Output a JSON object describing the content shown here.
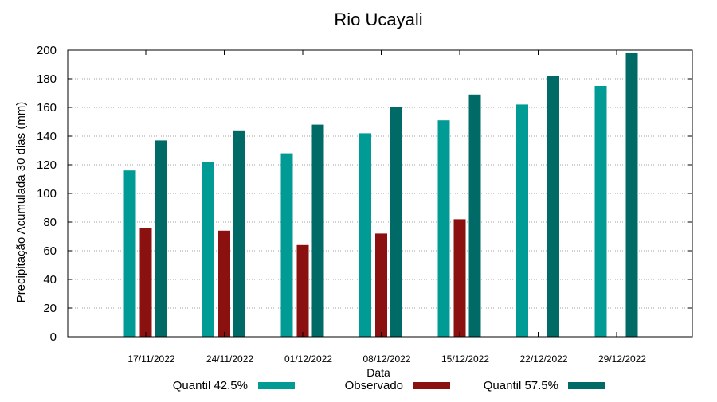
{
  "chart_data": {
    "type": "bar",
    "title": "Rio Ucayali",
    "xlabel": "Data",
    "ylabel": "Precipitação Acumulada 30 dias (mm)",
    "ylim": [
      0,
      200
    ],
    "yticks": [
      0,
      20,
      40,
      60,
      80,
      100,
      120,
      140,
      160,
      180,
      200
    ],
    "grid": true,
    "legend_position": "bottom",
    "categories": [
      "17/11/2022",
      "24/11/2022",
      "01/12/2022",
      "08/12/2022",
      "15/12/2022",
      "22/12/2022",
      "29/12/2022"
    ],
    "series": [
      {
        "name": "Quantil 42.5%",
        "color": "#009b95",
        "values": [
          116,
          122,
          128,
          142,
          151,
          162,
          175
        ]
      },
      {
        "name": "Observado",
        "color": "#8b1010",
        "values": [
          76,
          74,
          64,
          72,
          82,
          null,
          null
        ]
      },
      {
        "name": "Quantil 57.5%",
        "color": "#006a66",
        "values": [
          137,
          144,
          148,
          160,
          169,
          182,
          198
        ]
      }
    ]
  }
}
